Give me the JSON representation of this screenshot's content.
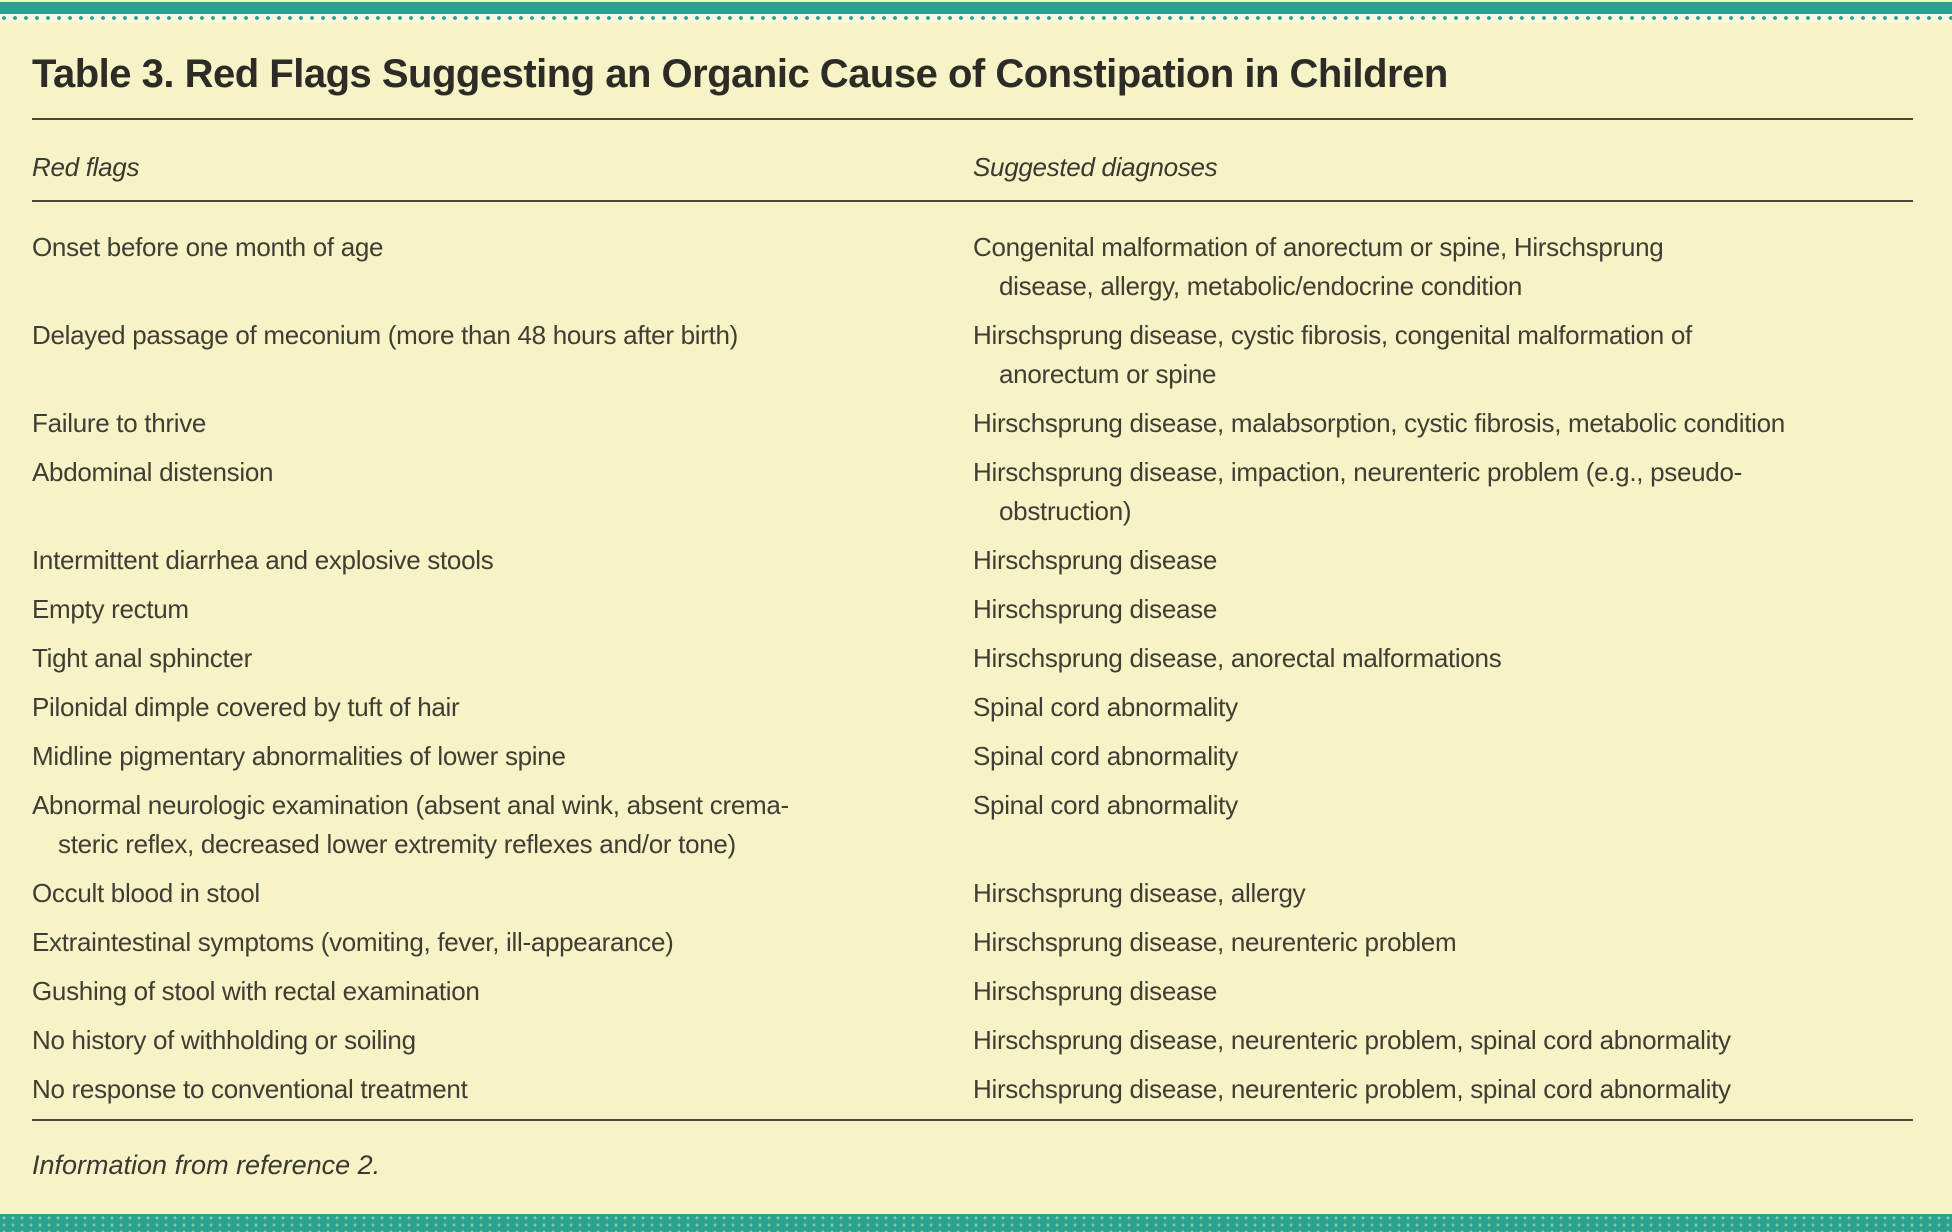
{
  "colors": {
    "accent_teal": "#2aa28f",
    "background_cream": "#f6f3c6",
    "rule_dark": "#4a473c",
    "text_dark": "#403d34"
  },
  "table": {
    "title": "Table 3. Red Flags Suggesting an Organic Cause of Constipation in Children",
    "columns": [
      "Red flags",
      "Suggested diagnoses"
    ],
    "rows": [
      {
        "red_flag": "Onset before one month of age",
        "diagnoses": "Congenital malformation of anorectum or spine, Hirschsprung\ndisease, allergy, metabolic/endocrine condition"
      },
      {
        "red_flag": "Delayed passage of meconium (more than 48 hours after birth)",
        "diagnoses": "Hirschsprung disease, cystic fibrosis, congenital malformation of\nanorectum or spine"
      },
      {
        "red_flag": "Failure to thrive",
        "diagnoses": "Hirschsprung disease, malabsorption, cystic fibrosis, metabolic condition"
      },
      {
        "red_flag": "Abdominal distension",
        "diagnoses": "Hirschsprung disease, impaction, neurenteric problem (e.g., pseudo-\nobstruction)"
      },
      {
        "red_flag": "Intermittent diarrhea and explosive stools",
        "diagnoses": "Hirschsprung disease"
      },
      {
        "red_flag": "Empty rectum",
        "diagnoses": "Hirschsprung disease"
      },
      {
        "red_flag": "Tight anal sphincter",
        "diagnoses": "Hirschsprung disease, anorectal malformations"
      },
      {
        "red_flag": "Pilonidal dimple covered by tuft of hair",
        "diagnoses": "Spinal cord abnormality"
      },
      {
        "red_flag": "Midline pigmentary abnormalities of lower spine",
        "diagnoses": "Spinal cord abnormality"
      },
      {
        "red_flag": "Abnormal neurologic examination (absent anal wink, absent crema-\nsteric reflex, decreased lower extremity reflexes and/or tone)",
        "diagnoses": "Spinal cord abnormality"
      },
      {
        "red_flag": "Occult blood in stool",
        "diagnoses": "Hirschsprung disease, allergy"
      },
      {
        "red_flag": "Extraintestinal symptoms (vomiting, fever, ill-appearance)",
        "diagnoses": "Hirschsprung disease, neurenteric problem"
      },
      {
        "red_flag": "Gushing of stool with rectal examination",
        "diagnoses": "Hirschsprung disease"
      },
      {
        "red_flag": "No history of withholding or soiling",
        "diagnoses": "Hirschsprung disease, neurenteric problem, spinal cord abnormality"
      },
      {
        "red_flag": "No response to conventional treatment",
        "diagnoses": "Hirschsprung disease, neurenteric problem, spinal cord abnormality"
      }
    ],
    "footnote": "Information from reference 2."
  }
}
